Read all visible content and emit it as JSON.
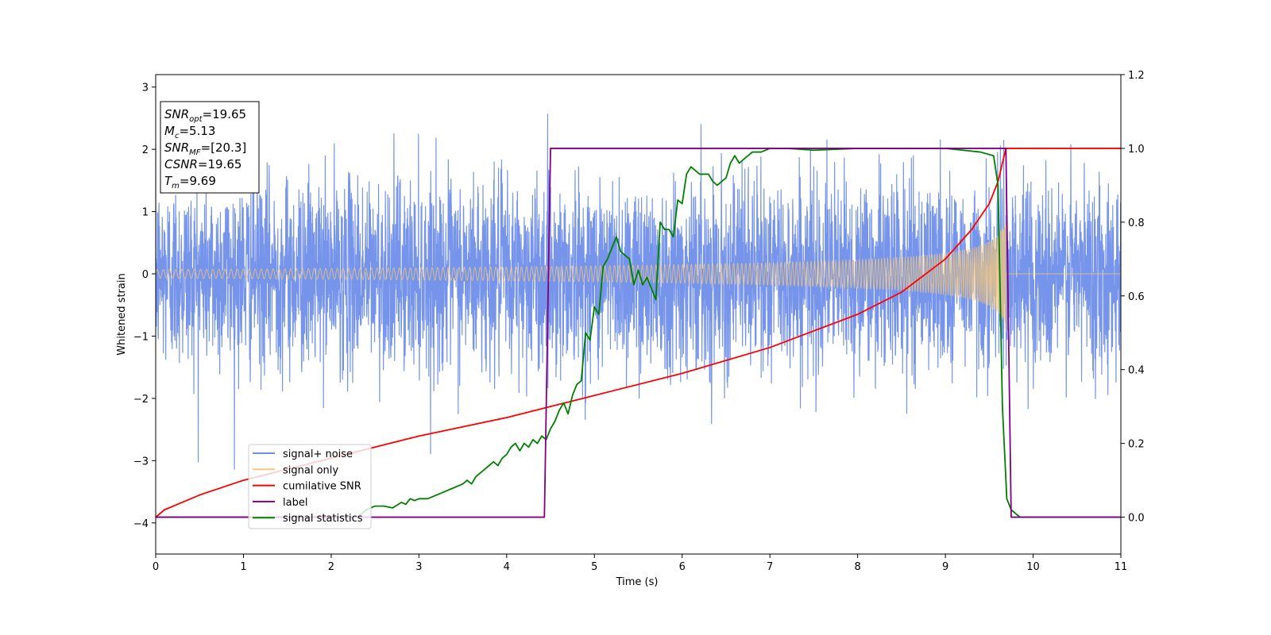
{
  "chart_data": {
    "type": "line",
    "xlabel": "Time (s)",
    "ylabel": "Whitened strain",
    "xlim": [
      0,
      11
    ],
    "ylim_left": [
      -4.5,
      3.2
    ],
    "ylim_right": [
      -0.1,
      1.2
    ],
    "x_ticks": [
      0,
      1,
      2,
      3,
      4,
      5,
      6,
      7,
      8,
      9,
      10,
      11
    ],
    "y_ticks_left": [
      3,
      2,
      1,
      0,
      -1,
      -2,
      -3,
      -4
    ],
    "y_ticks_right": [
      0.0,
      0.2,
      0.4,
      0.6,
      0.8,
      1.0,
      1.2
    ],
    "grid": false,
    "legend_position": "lower-left",
    "legend": [
      {
        "label": "signal+ noise",
        "color": "#6f8ee8"
      },
      {
        "label": "signal only",
        "color": "#f5c87a"
      },
      {
        "label": "cumilative SNR",
        "color": "#ff0000"
      },
      {
        "label": "label",
        "color": "#800080"
      },
      {
        "label": "signal statistics",
        "color": "#008000"
      }
    ],
    "annotation": {
      "lines": [
        {
          "main": "SNR",
          "sub": "opt",
          "value": "=19.65"
        },
        {
          "main": "M",
          "sub": "c",
          "value": "=5.13"
        },
        {
          "main": "SNR",
          "sub": "MF",
          "value": "=[20.3]"
        },
        {
          "main": "CSNR",
          "sub": "",
          "value": "=19.65"
        },
        {
          "main": "T",
          "sub": "m",
          "value": "=9.69"
        }
      ]
    },
    "series": [
      {
        "name": "signal+ noise",
        "axis": "left",
        "color": "#6f8ee8",
        "description_params": {
          "noise_sigma": 0.75,
          "peak_envelope_approx": 2.8,
          "x_range": [
            0,
            11
          ]
        }
      },
      {
        "name": "signal only",
        "axis": "left",
        "color": "#f5c87a",
        "chirp": {
          "t_start": 0,
          "t_merge": 9.69,
          "amp_start": 0.07,
          "amp_merge": 0.95,
          "ringdown_end": 9.75
        }
      },
      {
        "name": "cumilative SNR",
        "axis": "right",
        "color": "#ff0000",
        "x": [
          0,
          0.1,
          0.5,
          1,
          2,
          3,
          4,
          4.5,
          5,
          6,
          7,
          8,
          8.5,
          9,
          9.3,
          9.5,
          9.6,
          9.69,
          11
        ],
        "y": [
          0.0,
          0.02,
          0.06,
          0.1,
          0.16,
          0.22,
          0.27,
          0.3,
          0.33,
          0.39,
          0.46,
          0.55,
          0.61,
          0.7,
          0.78,
          0.85,
          0.91,
          1.0,
          1.0
        ]
      },
      {
        "name": "label",
        "axis": "right",
        "color": "#800080",
        "x": [
          0,
          4.43,
          4.5,
          9.69,
          9.75,
          11
        ],
        "y": [
          0,
          0,
          1,
          1,
          0,
          0
        ]
      },
      {
        "name": "signal statistics",
        "axis": "right",
        "color": "#008000",
        "x": [
          0,
          2.3,
          2.4,
          2.5,
          2.6,
          2.7,
          2.8,
          2.85,
          2.9,
          2.95,
          3.0,
          3.1,
          3.2,
          3.3,
          3.4,
          3.5,
          3.55,
          3.6,
          3.65,
          3.7,
          3.75,
          3.8,
          3.85,
          3.9,
          3.95,
          4.0,
          4.05,
          4.1,
          4.15,
          4.2,
          4.25,
          4.3,
          4.35,
          4.4,
          4.45,
          4.5,
          4.55,
          4.6,
          4.65,
          4.7,
          4.75,
          4.8,
          4.85,
          4.9,
          4.95,
          5.0,
          5.05,
          5.1,
          5.15,
          5.2,
          5.25,
          5.3,
          5.35,
          5.4,
          5.45,
          5.5,
          5.55,
          5.6,
          5.65,
          5.7,
          5.75,
          5.8,
          5.85,
          5.9,
          5.95,
          6.0,
          6.05,
          6.1,
          6.15,
          6.2,
          6.25,
          6.3,
          6.35,
          6.4,
          6.45,
          6.5,
          6.55,
          6.6,
          6.65,
          6.7,
          6.8,
          6.9,
          7.0,
          7.2,
          7.5,
          8.0,
          8.5,
          9.0,
          9.2,
          9.4,
          9.55,
          9.6,
          9.65,
          9.7,
          9.75,
          9.8,
          9.85,
          10.0,
          11.0
        ],
        "y": [
          0.0,
          0.0,
          0.02,
          0.03,
          0.03,
          0.025,
          0.04,
          0.035,
          0.05,
          0.045,
          0.05,
          0.05,
          0.06,
          0.07,
          0.08,
          0.09,
          0.1,
          0.09,
          0.11,
          0.12,
          0.13,
          0.14,
          0.15,
          0.14,
          0.16,
          0.17,
          0.19,
          0.2,
          0.18,
          0.2,
          0.19,
          0.21,
          0.2,
          0.22,
          0.21,
          0.24,
          0.26,
          0.29,
          0.31,
          0.28,
          0.33,
          0.36,
          0.37,
          0.5,
          0.48,
          0.57,
          0.55,
          0.68,
          0.7,
          0.73,
          0.76,
          0.72,
          0.71,
          0.7,
          0.63,
          0.67,
          0.63,
          0.65,
          0.62,
          0.59,
          0.8,
          0.78,
          0.78,
          0.76,
          0.86,
          0.85,
          0.93,
          0.95,
          0.94,
          0.93,
          0.93,
          0.93,
          0.91,
          0.9,
          0.91,
          0.92,
          0.96,
          0.98,
          0.96,
          0.97,
          0.99,
          0.99,
          1.0,
          1.0,
          0.995,
          1.0,
          1.0,
          1.0,
          0.995,
          0.99,
          0.98,
          0.9,
          0.3,
          0.05,
          0.02,
          0.01,
          0.0,
          0.0,
          0.0
        ]
      }
    ]
  }
}
